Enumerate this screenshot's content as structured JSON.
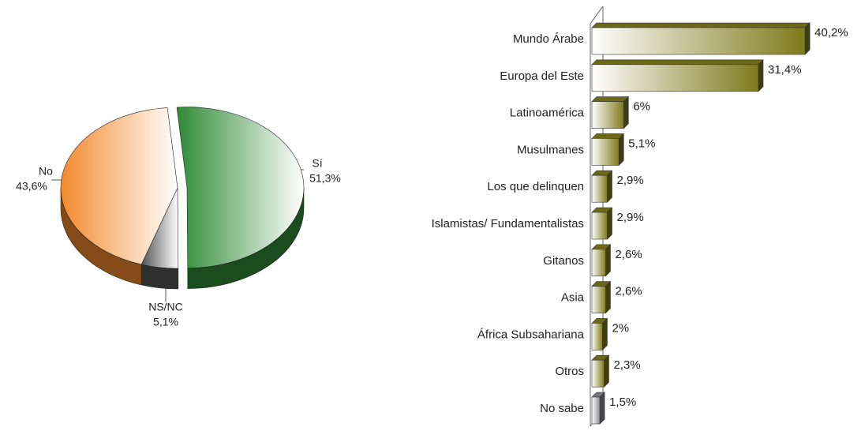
{
  "chart_data": [
    {
      "type": "pie",
      "categories": [
        "Sí",
        "NS/NC",
        "No"
      ],
      "values": [
        51.3,
        5.1,
        43.6
      ],
      "value_labels": [
        "51,3%",
        "5,1%",
        "43,6%"
      ],
      "colors": [
        "#2f8a35",
        "#555555",
        "#f28a2e"
      ]
    },
    {
      "type": "hbar",
      "categories": [
        "Mundo Árabe",
        "Europa del Este",
        "Latinoamérica",
        "Musulmanes",
        "Los que delinquen",
        "Islamistas/ Fundamentalistas",
        "Gitanos",
        "Asia",
        "África Subsahariana",
        "Otros",
        "No sabe"
      ],
      "values": [
        40.2,
        31.4,
        6,
        5.1,
        2.9,
        2.9,
        2.6,
        2.6,
        2,
        2.3,
        1.5
      ],
      "value_labels": [
        "40,2%",
        "31,4%",
        "6%",
        "5,1%",
        "2,9%",
        "2,9%",
        "2,6%",
        "2,6%",
        "2%",
        "2,3%",
        "1,5%"
      ],
      "colors": [
        "#7f7a1c",
        "#7f7a1c",
        "#7f7a1c",
        "#7f7a1c",
        "#7f7a1c",
        "#7f7a1c",
        "#7f7a1c",
        "#7f7a1c",
        "#7f7a1c",
        "#7f7a1c",
        "#8c8c94"
      ]
    }
  ]
}
